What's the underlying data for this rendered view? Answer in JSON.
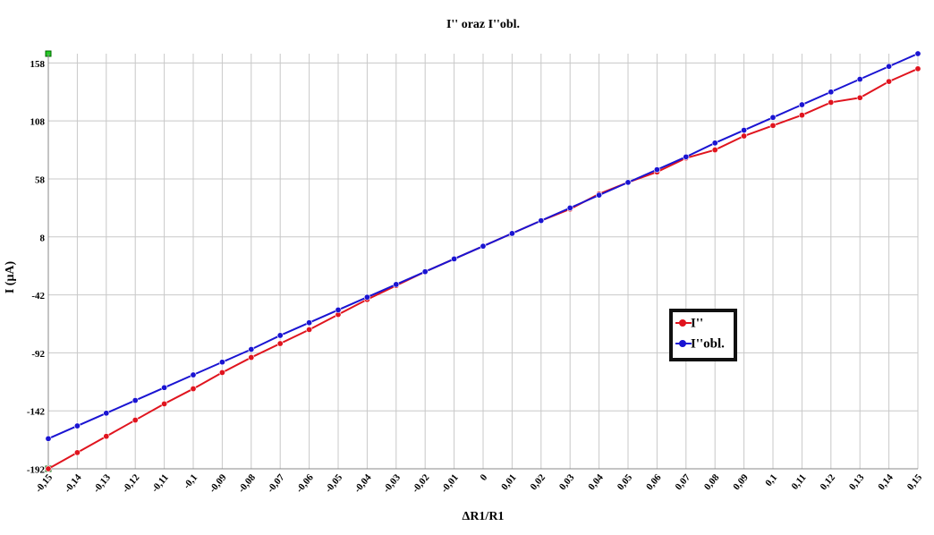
{
  "chart_data": {
    "type": "line",
    "title": "I''  oraz  I''obl.",
    "x_label": "ΔR1/R1",
    "y_label": "I (μA)",
    "x": [
      -0.15,
      -0.14,
      -0.13,
      -0.12,
      -0.11,
      -0.1,
      -0.09,
      -0.08,
      -0.07,
      -0.06,
      -0.05,
      -0.04,
      -0.03,
      -0.02,
      -0.01,
      0,
      0.01,
      0.02,
      0.03,
      0.04,
      0.05,
      0.06,
      0.07,
      0.08,
      0.09,
      0.1,
      0.11,
      0.12,
      0.13,
      0.14,
      0.15
    ],
    "series": [
      {
        "name": "I''",
        "color": "#e0141e",
        "values": [
          -192,
          -178,
          -164,
          -150,
          -136,
          -123,
          -109,
          -96,
          -84,
          -72,
          -59,
          -46,
          -34,
          -22,
          -11,
          0,
          11,
          22,
          32,
          45,
          55,
          64,
          76,
          83,
          95,
          104,
          113,
          124,
          128,
          142,
          153
        ]
      },
      {
        "name": "I''obl.",
        "color": "#1a14d2",
        "values": [
          -166,
          -155,
          -144,
          -133,
          -122,
          -111,
          -100,
          -89,
          -77,
          -66,
          -55,
          -44,
          -33,
          -22,
          -11,
          0,
          11,
          22,
          33,
          44,
          55,
          66,
          77,
          89,
          100,
          111,
          122,
          133,
          144,
          155,
          166
        ]
      }
    ],
    "xlim": [
      -0.15,
      0.15
    ],
    "xticks": [
      {
        "value": -0.15,
        "label": "-0,15"
      },
      {
        "value": -0.14,
        "label": "-0,14"
      },
      {
        "value": -0.13,
        "label": "-0,13"
      },
      {
        "value": -0.12,
        "label": "-0,12"
      },
      {
        "value": -0.11,
        "label": "-0,11"
      },
      {
        "value": -0.1,
        "label": "-0,1"
      },
      {
        "value": -0.09,
        "label": "-0,09"
      },
      {
        "value": -0.08,
        "label": "-0,08"
      },
      {
        "value": -0.07,
        "label": "-0,07"
      },
      {
        "value": -0.06,
        "label": "-0,06"
      },
      {
        "value": -0.05,
        "label": "-0,05"
      },
      {
        "value": -0.04,
        "label": "-0,04"
      },
      {
        "value": -0.03,
        "label": "-0,03"
      },
      {
        "value": -0.02,
        "label": "-0,02"
      },
      {
        "value": -0.01,
        "label": "-0,01"
      },
      0,
      {
        "value": 0.01,
        "label": "0,01"
      },
      {
        "value": 0.02,
        "label": "0,02"
      },
      {
        "value": 0.03,
        "label": "0,03"
      },
      {
        "value": 0.04,
        "label": "0,04"
      },
      {
        "value": 0.05,
        "label": "0,05"
      },
      {
        "value": 0.06,
        "label": "0,06"
      },
      {
        "value": 0.07,
        "label": "0,07"
      },
      {
        "value": 0.08,
        "label": "0,08"
      },
      {
        "value": 0.09,
        "label": "0,09"
      },
      {
        "value": 0.1,
        "label": "0,1"
      },
      {
        "value": 0.11,
        "label": "0,11"
      },
      {
        "value": 0.12,
        "label": "0,12"
      },
      {
        "value": 0.13,
        "label": "0,13"
      },
      {
        "value": 0.14,
        "label": "0,14"
      },
      {
        "value": 0.15,
        "label": "0,15"
      }
    ],
    "ylim": [
      -192,
      166
    ],
    "yticks": [
      -192,
      -142,
      -92,
      -42,
      8,
      58,
      108,
      158
    ],
    "grid": true,
    "legend_position": "right"
  }
}
